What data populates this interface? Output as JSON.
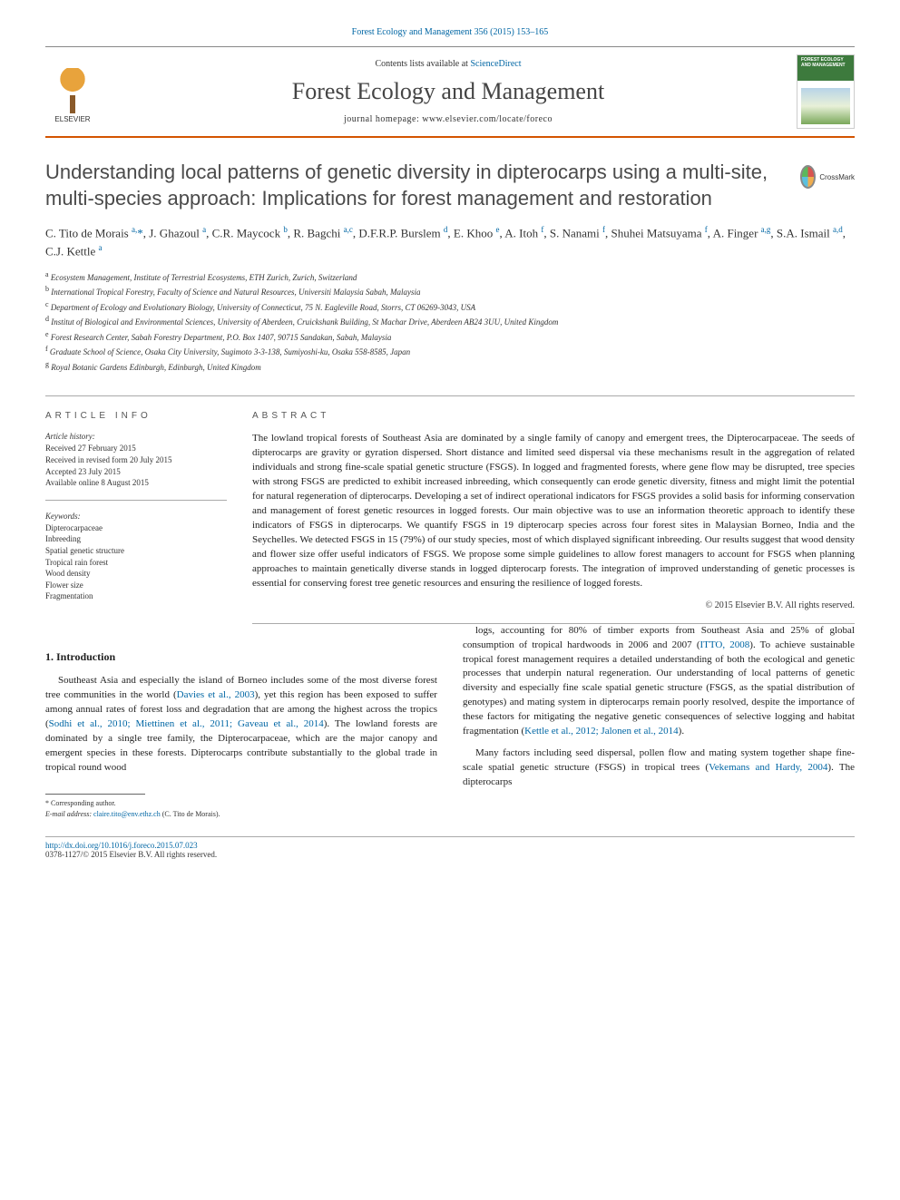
{
  "journal_ref": "Forest Ecology and Management 356 (2015) 153–165",
  "header": {
    "contents_prefix": "Contents lists available at ",
    "contents_link": "ScienceDirect",
    "journal_name": "Forest Ecology and Management",
    "homepage_label": "journal homepage: www.elsevier.com/locate/foreco",
    "elsevier_label": "ELSEVIER",
    "cover_title": "FOREST ECOLOGY AND MANAGEMENT"
  },
  "crossmark_label": "CrossMark",
  "article_title": "Understanding local patterns of genetic diversity in dipterocarps using a multi-site, multi-species approach: Implications for forest management and restoration",
  "authors_html": "C. Tito de Morais <sup>a,</sup><span class='corr'>*</span>, J. Ghazoul <sup>a</sup>, C.R. Maycock <sup>b</sup>, R. Bagchi <sup>a,c</sup>, D.F.R.P. Burslem <sup>d</sup>, E. Khoo <sup>e</sup>, A. Itoh <sup>f</sup>, S. Nanami <sup>f</sup>, Shuhei Matsuyama <sup>f</sup>, A. Finger <sup>a,g</sup>, S.A. Ismail <sup>a,d</sup>, C.J. Kettle <sup>a</sup>",
  "affiliations": [
    {
      "sup": "a",
      "text": "Ecosystem Management, Institute of Terrestrial Ecosystems, ETH Zurich, Zurich, Switzerland"
    },
    {
      "sup": "b",
      "text": "International Tropical Forestry, Faculty of Science and Natural Resources, Universiti Malaysia Sabah, Malaysia"
    },
    {
      "sup": "c",
      "text": "Department of Ecology and Evolutionary Biology, University of Connecticut, 75 N. Eagleville Road, Storrs, CT 06269-3043, USA"
    },
    {
      "sup": "d",
      "text": "Institut of Biological and Environmental Sciences, University of Aberdeen, Cruickshank Building, St Machar Drive, Aberdeen AB24 3UU, United Kingdom"
    },
    {
      "sup": "e",
      "text": "Forest Research Center, Sabah Forestry Department, P.O. Box 1407, 90715 Sandakan, Sabah, Malaysia"
    },
    {
      "sup": "f",
      "text": "Graduate School of Science, Osaka City University, Sugimoto 3-3-138, Sumiyoshi-ku, Osaka 558-8585, Japan"
    },
    {
      "sup": "g",
      "text": "Royal Botanic Gardens Edinburgh, Edinburgh, United Kingdom"
    }
  ],
  "article_info": {
    "heading": "ARTICLE INFO",
    "history_heading": "Article history:",
    "history": [
      "Received 27 February 2015",
      "Received in revised form 20 July 2015",
      "Accepted 23 July 2015",
      "Available online 8 August 2015"
    ],
    "keywords_heading": "Keywords:",
    "keywords": [
      "Dipterocarpaceae",
      "Inbreeding",
      "Spatial genetic structure",
      "Tropical rain forest",
      "Wood density",
      "Flower size",
      "Fragmentation"
    ]
  },
  "abstract": {
    "heading": "ABSTRACT",
    "text": "The lowland tropical forests of Southeast Asia are dominated by a single family of canopy and emergent trees, the Dipterocarpaceae. The seeds of dipterocarps are gravity or gyration dispersed. Short distance and limited seed dispersal via these mechanisms result in the aggregation of related individuals and strong fine-scale spatial genetic structure (FSGS). In logged and fragmented forests, where gene flow may be disrupted, tree species with strong FSGS are predicted to exhibit increased inbreeding, which consequently can erode genetic diversity, fitness and might limit the potential for natural regeneration of dipterocarps. Developing a set of indirect operational indicators for FSGS provides a solid basis for informing conservation and management of forest genetic resources in logged forests. Our main objective was to use an information theoretic approach to identify these indicators of FSGS in dipterocarps. We quantify FSGS in 19 dipterocarp species across four forest sites in Malaysian Borneo, India and the Seychelles. We detected FSGS in 15 (79%) of our study species, most of which displayed significant inbreeding. Our results suggest that wood density and flower size offer useful indicators of FSGS. We propose some simple guidelines to allow forest managers to account for FSGS when planning approaches to maintain genetically diverse stands in logged dipterocarp forests. The integration of improved understanding of genetic processes is essential for conserving forest tree genetic resources and ensuring the resilience of logged forests.",
    "copyright": "© 2015 Elsevier B.V. All rights reserved."
  },
  "intro": {
    "heading": "1. Introduction",
    "p1_pre": "Southeast Asia and especially the island of Borneo includes some of the most diverse forest tree communities in the world (",
    "p1_ref1": "Davies et al., 2003",
    "p1_mid1": "), yet this region has been exposed to suffer among annual rates of forest loss and degradation that are among the highest across the tropics (",
    "p1_ref2": "Sodhi et al., 2010; Miettinen et al., 2011; Gaveau et al., 2014",
    "p1_mid2": "). The lowland forests are dominated by a single tree family, the Dipterocarpaceae, which are the major canopy and emergent species in these forests. Dipterocarps contribute substantially to the global trade in tropical round wood",
    "p2_pre": "logs, accounting for 80% of timber exports from Southeast Asia and 25% of global consumption of tropical hardwoods in 2006 and 2007 (",
    "p2_ref1": "ITTO, 2008",
    "p2_mid1": "). To achieve sustainable tropical forest management requires a detailed understanding of both the ecological and genetic processes that underpin natural regeneration. Our understanding of local patterns of genetic diversity and especially fine scale spatial genetic structure (FSGS, as the spatial distribution of genotypes) and mating system in dipterocarps remain poorly resolved, despite the importance of these factors for mitigating the negative genetic consequences of selective logging and habitat fragmentation (",
    "p2_ref2": "Kettle et al., 2012; Jalonen et al., 2014",
    "p2_mid2": ").",
    "p3_pre": "Many factors including seed dispersal, pollen flow and mating system together shape fine-scale spatial genetic structure (FSGS) in tropical trees (",
    "p3_ref1": "Vekemans and Hardy, 2004",
    "p3_mid1": "). The dipterocarps"
  },
  "footnotes": {
    "corr_label": "* Corresponding author.",
    "email_label": "E-mail address: ",
    "email": "claire.tito@env.ethz.ch",
    "email_who": " (C. Tito de Morais)."
  },
  "footer": {
    "doi": "http://dx.doi.org/10.1016/j.foreco.2015.07.023",
    "issn": "0378-1127/© 2015 Elsevier B.V. All rights reserved."
  },
  "colors": {
    "link": "#0066a4",
    "rule_orange": "#d35400",
    "text": "#222222",
    "heading_gray": "#555555"
  }
}
